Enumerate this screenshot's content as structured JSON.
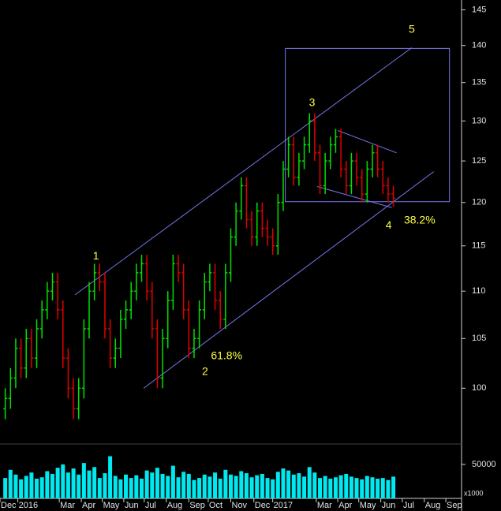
{
  "chart_data": {
    "type": "candlestick",
    "log_scale": true,
    "up_color": "#00e000",
    "down_color": "#e00000",
    "volume_color": "#00e8f0",
    "line_color": "#7878f0",
    "annotation_color": "#ffff40",
    "xlim": [
      0,
      88
    ],
    "xticks": [
      {
        "value": 0,
        "label": "Dec"
      },
      {
        "value": 3.4,
        "label": "2016"
      },
      {
        "value": 11.3,
        "label": "Mar"
      },
      {
        "value": 15.5,
        "label": "Apr"
      },
      {
        "value": 19.5,
        "label": "May"
      },
      {
        "value": 23.6,
        "label": "Jun"
      },
      {
        "value": 27.5,
        "label": "Jul"
      },
      {
        "value": 31.7,
        "label": "Aug"
      },
      {
        "value": 36,
        "label": "Sep"
      },
      {
        "value": 39.7,
        "label": "Oct"
      },
      {
        "value": 44,
        "label": "Nov"
      },
      {
        "value": 48.4,
        "label": "Dec"
      },
      {
        "value": 52,
        "label": "2017"
      },
      {
        "value": 60.3,
        "label": "Mar"
      },
      {
        "value": 64.4,
        "label": "Apr"
      },
      {
        "value": 68.4,
        "label": "May"
      },
      {
        "value": 72.6,
        "label": "Jun"
      },
      {
        "value": 76.7,
        "label": "Jul"
      },
      {
        "value": 80.9,
        "label": "Aug"
      },
      {
        "value": 85,
        "label": "Sep"
      }
    ],
    "ylim": [
      96,
      146.4
    ],
    "yticks": [
      100,
      105,
      110,
      115,
      120,
      125,
      130,
      135,
      140,
      145
    ],
    "ohlc": [
      [
        98,
        100,
        97,
        99
      ],
      [
        99,
        102,
        98,
        101
      ],
      [
        101,
        105,
        100,
        104
      ],
      [
        104,
        105,
        101,
        102
      ],
      [
        102,
        106,
        101,
        105
      ],
      [
        105,
        106,
        102,
        103
      ],
      [
        103,
        107,
        102,
        106
      ],
      [
        106,
        109,
        105,
        108
      ],
      [
        108,
        111,
        107,
        110
      ],
      [
        110,
        112,
        109,
        111
      ],
      [
        111,
        112,
        107,
        108
      ],
      [
        108,
        109,
        102,
        103
      ],
      [
        103,
        104,
        99,
        100
      ],
      [
        100,
        101,
        97,
        98
      ],
      [
        98,
        101,
        97,
        100
      ],
      [
        100,
        107,
        99,
        106
      ],
      [
        106,
        111,
        105,
        110
      ],
      [
        110,
        113,
        109,
        112
      ],
      [
        112,
        113,
        110,
        111
      ],
      [
        111,
        112,
        105,
        106
      ],
      [
        106,
        107,
        102,
        103
      ],
      [
        103,
        105,
        102,
        104
      ],
      [
        104,
        108,
        103,
        107
      ],
      [
        107,
        109,
        106,
        108
      ],
      [
        108,
        111,
        107,
        110
      ],
      [
        110,
        113,
        109,
        112
      ],
      [
        112,
        114,
        111,
        113
      ],
      [
        113,
        114,
        109,
        110
      ],
      [
        110,
        111,
        105,
        106
      ],
      [
        106,
        107,
        100,
        101
      ],
      [
        101,
        106,
        100,
        105
      ],
      [
        105,
        110,
        104,
        109
      ],
      [
        109,
        114,
        108,
        113
      ],
      [
        113,
        114,
        111,
        112
      ],
      [
        112,
        113,
        107,
        108
      ],
      [
        108,
        109,
        103,
        104
      ],
      [
        104,
        106,
        103,
        105
      ],
      [
        105,
        109,
        104,
        108
      ],
      [
        108,
        112,
        107,
        111
      ],
      [
        111,
        113,
        110,
        112
      ],
      [
        112,
        113,
        108,
        109
      ],
      [
        109,
        110,
        106,
        107
      ],
      [
        107,
        113,
        106,
        112
      ],
      [
        112,
        117,
        111,
        116
      ],
      [
        116,
        120,
        115,
        119
      ],
      [
        119,
        123,
        118,
        122
      ],
      [
        122,
        123,
        117,
        118
      ],
      [
        118,
        119,
        115,
        116
      ],
      [
        116,
        120,
        115,
        119
      ],
      [
        119,
        120,
        116,
        117
      ],
      [
        117,
        118,
        115,
        116
      ],
      [
        116,
        117,
        114,
        115
      ],
      [
        115,
        121,
        114,
        120
      ],
      [
        120,
        125,
        119,
        124
      ],
      [
        124,
        128,
        123,
        127
      ],
      [
        127,
        128,
        122,
        123
      ],
      [
        123,
        126,
        122,
        125
      ],
      [
        125,
        128,
        124,
        127
      ],
      [
        127,
        131,
        126,
        130
      ],
      [
        130,
        131,
        125,
        126
      ],
      [
        126,
        127,
        121,
        122
      ],
      [
        122,
        126,
        121,
        125
      ],
      [
        125,
        128,
        124,
        127
      ],
      [
        127,
        129,
        126,
        128
      ],
      [
        128,
        129,
        123,
        124
      ],
      [
        124,
        125,
        121,
        122
      ],
      [
        122,
        126,
        121,
        125
      ],
      [
        125,
        126,
        122,
        123
      ],
      [
        123,
        124,
        120,
        121
      ],
      [
        121,
        125,
        120,
        124
      ],
      [
        124,
        127,
        123,
        126
      ],
      [
        126,
        127,
        123,
        124
      ],
      [
        124,
        125,
        121,
        122
      ],
      [
        122,
        123,
        120,
        121
      ],
      [
        121,
        122,
        119.5,
        120.5
      ]
    ],
    "volume": [
      30000,
      42000,
      35000,
      28000,
      33000,
      38000,
      29000,
      31000,
      40000,
      36000,
      45000,
      50000,
      38000,
      44000,
      35000,
      52000,
      41000,
      46000,
      30000,
      37000,
      62000,
      33000,
      28000,
      35000,
      30000,
      34000,
      29000,
      41000,
      38000,
      45000,
      36000,
      33000,
      48000,
      31000,
      39000,
      36000,
      27000,
      30000,
      35000,
      32000,
      38000,
      29000,
      42000,
      35000,
      33000,
      40000,
      37000,
      31000,
      34000,
      36000,
      30000,
      28000,
      39000,
      44000,
      41000,
      35000,
      37000,
      32000,
      46000,
      38000,
      30000,
      33000,
      29000,
      31000,
      34000,
      36000,
      32000,
      30000,
      28000,
      33000,
      31000,
      29000,
      30000,
      27000,
      32000
    ],
    "volume_ylim": [
      0,
      80000
    ],
    "volume_yticks": [
      50000
    ],
    "volume_unit": "x1000",
    "lines": [
      {
        "x": [
          14.3,
          78.5
        ],
        "y": [
          109.6,
          139.7
        ]
      },
      {
        "x": [
          27.4,
          82.7
        ],
        "y": [
          100,
          123.7
        ]
      },
      {
        "x": [
          64.4,
          75.6
        ],
        "y": [
          128.8,
          126
        ]
      },
      {
        "x": [
          60.5,
          74.7
        ],
        "y": [
          121.9,
          119.4
        ]
      },
      {
        "x": [
          54.4,
          85.7,
          85.7,
          54.4,
          54.4
        ],
        "y": [
          139.6,
          139.6,
          120.1,
          120.1,
          139.6
        ]
      }
    ],
    "annotations": [
      {
        "text": "1",
        "x": 18.3,
        "y": 113.8
      },
      {
        "text": "2",
        "x": 39.1,
        "y": 101.6
      },
      {
        "text": "61.8%",
        "x": 43.2,
        "y": 103.2
      },
      {
        "text": "3",
        "x": 59.5,
        "y": 132.3
      },
      {
        "text": "4",
        "x": 74.1,
        "y": 117.3
      },
      {
        "text": "38.2%",
        "x": 80,
        "y": 117.9
      },
      {
        "text": "5",
        "x": 78.5,
        "y": 142.2
      }
    ]
  }
}
